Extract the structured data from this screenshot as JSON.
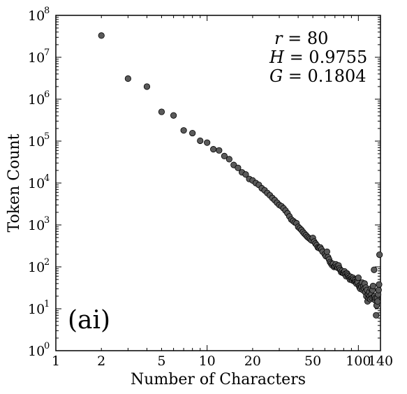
{
  "chart_data": {
    "type": "scatter",
    "title": "",
    "xlabel": "Number of Characters",
    "ylabel": "Token Count",
    "x_scale": "log",
    "y_scale": "log",
    "xlim": [
      1,
      140
    ],
    "ylim": [
      1,
      100000000
    ],
    "x_ticks": [
      {
        "value": 1,
        "label": "1"
      },
      {
        "value": 2,
        "label": "2"
      },
      {
        "value": 5,
        "label": "5"
      },
      {
        "value": 10,
        "label": "10"
      },
      {
        "value": 20,
        "label": "20"
      },
      {
        "value": 50,
        "label": "50"
      },
      {
        "value": 100,
        "label": "100"
      },
      {
        "value": 140,
        "label": "140"
      }
    ],
    "y_ticks": [
      {
        "value": 1,
        "base": "10",
        "exp": "0"
      },
      {
        "value": 10,
        "base": "10",
        "exp": "1"
      },
      {
        "value": 100,
        "base": "10",
        "exp": "2"
      },
      {
        "value": 1000,
        "base": "10",
        "exp": "3"
      },
      {
        "value": 10000,
        "base": "10",
        "exp": "4"
      },
      {
        "value": 100000,
        "base": "10",
        "exp": "5"
      },
      {
        "value": 1000000,
        "base": "10",
        "exp": "6"
      },
      {
        "value": 10000000,
        "base": "10",
        "exp": "7"
      },
      {
        "value": 100000000,
        "base": "10",
        "exp": "8"
      }
    ],
    "grid": false,
    "marker_color": "#5a5a5a",
    "marker_edge": "#000000",
    "annotations": {
      "panel_label": "(ai)",
      "stats": [
        {
          "var": "r",
          "value": "= 80"
        },
        {
          "var": "H",
          "value": "= 0.9755"
        },
        {
          "var": "G",
          "value": "= 0.1804"
        }
      ]
    },
    "points": [
      [
        2,
        33000000
      ],
      [
        3,
        3100000
      ],
      [
        4,
        2000000
      ],
      [
        5,
        500000
      ],
      [
        6,
        410000
      ],
      [
        7,
        180000
      ],
      [
        8,
        155000
      ],
      [
        9,
        102000
      ],
      [
        10,
        92000
      ],
      [
        11,
        64000
      ],
      [
        12,
        60000
      ],
      [
        13,
        44000
      ],
      [
        14,
        37000
      ],
      [
        15,
        27000
      ],
      [
        16,
        23000
      ],
      [
        17,
        18000
      ],
      [
        18,
        16000
      ],
      [
        19,
        12500
      ],
      [
        20,
        11500
      ],
      [
        21,
        10000
      ],
      [
        22,
        9000
      ],
      [
        23,
        7500
      ],
      [
        24,
        6700
      ],
      [
        25,
        5800
      ],
      [
        26,
        5100
      ],
      [
        27,
        4400
      ],
      [
        28,
        3900
      ],
      [
        29,
        3400
      ],
      [
        30,
        3000
      ],
      [
        31,
        2800
      ],
      [
        32,
        2500
      ],
      [
        33,
        2200
      ],
      [
        34,
        1900
      ],
      [
        35,
        1600
      ],
      [
        36,
        1350
      ],
      [
        37,
        1250
      ],
      [
        38,
        1150
      ],
      [
        39,
        1100
      ],
      [
        40,
        900
      ],
      [
        41,
        830
      ],
      [
        42,
        760
      ],
      [
        43,
        680
      ],
      [
        44,
        620
      ],
      [
        45,
        570
      ],
      [
        46,
        520
      ],
      [
        47,
        490
      ],
      [
        48,
        460
      ],
      [
        49,
        430
      ],
      [
        50,
        490
      ],
      [
        51,
        400
      ],
      [
        52,
        360
      ],
      [
        53,
        330
      ],
      [
        54,
        290
      ],
      [
        55,
        280
      ],
      [
        56,
        290
      ],
      [
        57,
        260
      ],
      [
        58,
        230
      ],
      [
        60,
        200
      ],
      [
        61,
        180
      ],
      [
        62,
        230
      ],
      [
        63,
        170
      ],
      [
        64,
        150
      ],
      [
        65,
        130
      ],
      [
        66,
        120
      ],
      [
        67,
        110
      ],
      [
        68,
        118
      ],
      [
        69,
        100
      ],
      [
        70,
        105
      ],
      [
        71,
        115
      ],
      [
        72,
        102
      ],
      [
        73,
        95
      ],
      [
        74,
        108
      ],
      [
        75,
        92
      ],
      [
        76,
        84
      ],
      [
        77,
        75
      ],
      [
        78,
        80
      ],
      [
        79,
        72
      ],
      [
        80,
        70
      ],
      [
        81,
        78
      ],
      [
        82,
        68
      ],
      [
        83,
        60
      ],
      [
        84,
        70
      ],
      [
        85,
        65
      ],
      [
        86,
        60
      ],
      [
        87,
        55
      ],
      [
        88,
        50
      ],
      [
        89,
        58
      ],
      [
        90,
        52
      ],
      [
        91,
        48
      ],
      [
        92,
        55
      ],
      [
        93,
        50
      ],
      [
        94,
        45
      ],
      [
        95,
        48
      ],
      [
        96,
        44
      ],
      [
        97,
        40
      ],
      [
        98,
        45
      ],
      [
        99,
        42
      ],
      [
        100,
        55
      ],
      [
        101,
        35
      ],
      [
        102,
        32
      ],
      [
        103,
        30
      ],
      [
        104,
        38
      ],
      [
        105,
        33
      ],
      [
        106,
        42
      ],
      [
        107,
        28
      ],
      [
        108,
        35
      ],
      [
        109,
        30
      ],
      [
        110,
        40
      ],
      [
        111,
        25
      ],
      [
        112,
        32
      ],
      [
        113,
        20
      ],
      [
        114,
        28
      ],
      [
        115,
        15
      ],
      [
        116,
        22
      ],
      [
        117,
        18
      ],
      [
        118,
        25
      ],
      [
        119,
        20
      ],
      [
        120,
        17
      ],
      [
        121,
        30
      ],
      [
        122,
        22
      ],
      [
        123,
        18
      ],
      [
        124,
        28
      ],
      [
        125,
        35
      ],
      [
        126,
        19
      ],
      [
        127,
        85
      ],
      [
        128,
        20
      ],
      [
        129,
        16
      ],
      [
        130,
        18
      ],
      [
        131,
        7
      ],
      [
        132,
        12
      ],
      [
        133,
        18
      ],
      [
        134,
        15
      ],
      [
        135,
        22
      ],
      [
        136,
        28
      ],
      [
        137,
        38
      ],
      [
        138,
        195
      ]
    ]
  }
}
